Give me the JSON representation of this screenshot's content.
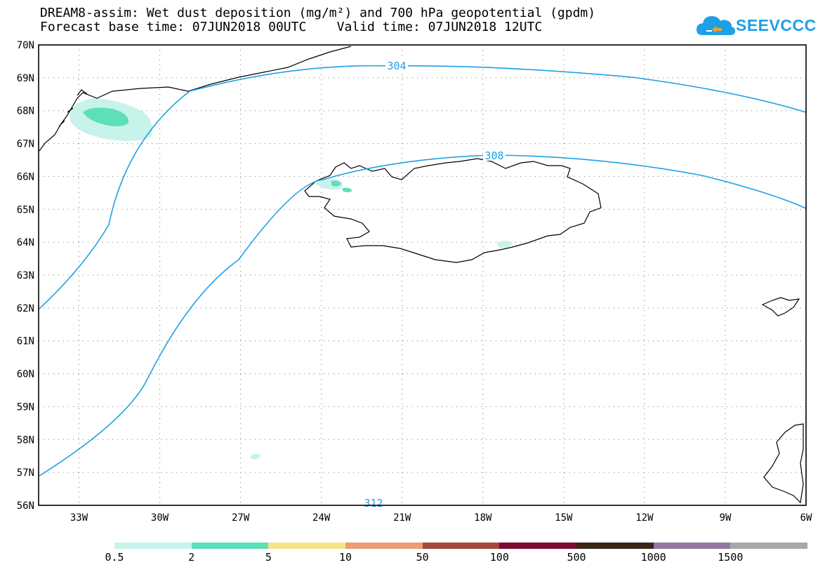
{
  "header": {
    "title_line1": "DREAM8-assim: Wet dust deposition (mg/m²) and 700 hPa geopotential (gpdm)",
    "title_line2": "Forecast base time: 07JUN2018 00UTC    Valid time: 07JUN2018 12UTC"
  },
  "logo": {
    "text": "SEEVCCC",
    "icon": "cloud-logo-icon",
    "color": "#1ea0e6"
  },
  "map": {
    "lat_labels": [
      "70N",
      "69N",
      "68N",
      "67N",
      "66N",
      "65N",
      "64N",
      "63N",
      "62N",
      "61N",
      "60N",
      "59N",
      "58N",
      "57N",
      "56N"
    ],
    "lon_labels": [
      "33W",
      "30W",
      "27W",
      "24W",
      "21W",
      "18W",
      "15W",
      "12W",
      "9W",
      "6W"
    ],
    "contour_labels": [
      "304",
      "308",
      "312"
    ],
    "contour_color": "#1ea0e6",
    "grid": true,
    "projection_extent": {
      "lon": [
        -34.5,
        -6
      ],
      "lat": [
        56,
        70
      ]
    }
  },
  "colorbar": {
    "labels": [
      "0.5",
      "2",
      "5",
      "10",
      "50",
      "100",
      "500",
      "1000",
      "1500"
    ],
    "colors": [
      "#c8f3ea",
      "#5de0b9",
      "#f5e58a",
      "#eb9d73",
      "#a3483e",
      "#7e0a30",
      "#3a2718",
      "#94779f",
      "#a8a8a8"
    ]
  }
}
